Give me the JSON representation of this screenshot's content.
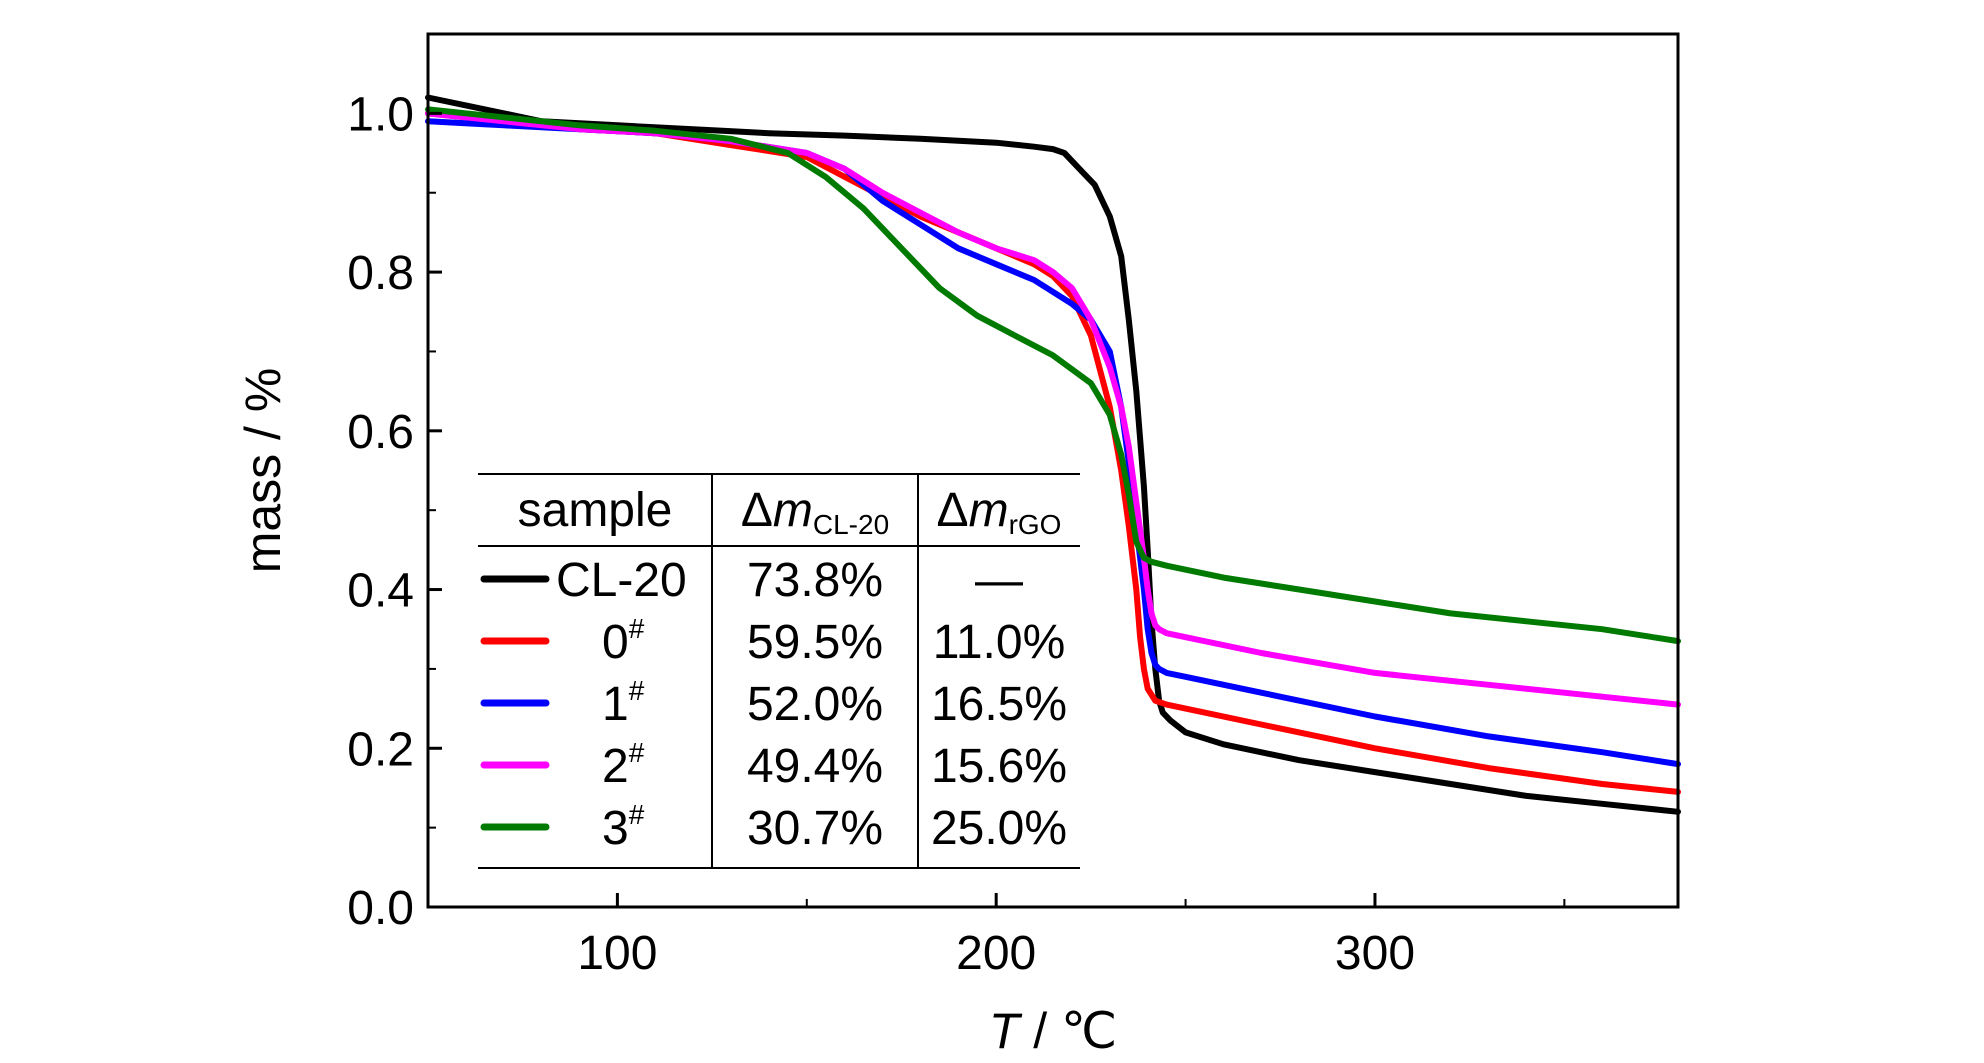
{
  "chart_data": {
    "type": "line",
    "xlabel": {
      "var": "T",
      "unit": " / ℃"
    },
    "ylabel": "mass / %",
    "xlim": [
      50,
      380
    ],
    "ylim": [
      0,
      1.1
    ],
    "xticks": [
      100,
      200,
      300
    ],
    "xticks_labels": [
      "100",
      "200",
      "300"
    ],
    "yticks": [
      0.0,
      0.2,
      0.4,
      0.6,
      0.8,
      1.0
    ],
    "yticks_labels": [
      "0.0",
      "0.2",
      "0.4",
      "0.6",
      "0.8",
      "1.0"
    ],
    "series": [
      {
        "name": "CL-20",
        "color": "#000000",
        "x": [
          50,
          60,
          80,
          100,
          120,
          140,
          160,
          180,
          200,
          210,
          215,
          218,
          222,
          226,
          230,
          233,
          235,
          237,
          239,
          240,
          241,
          242,
          243,
          244,
          246,
          250,
          260,
          280,
          300,
          320,
          340,
          360,
          380
        ],
        "y": [
          1.02,
          1.01,
          0.99,
          0.985,
          0.98,
          0.975,
          0.972,
          0.968,
          0.963,
          0.958,
          0.955,
          0.95,
          0.93,
          0.91,
          0.87,
          0.82,
          0.74,
          0.65,
          0.53,
          0.45,
          0.36,
          0.3,
          0.26,
          0.245,
          0.235,
          0.22,
          0.205,
          0.185,
          0.17,
          0.155,
          0.14,
          0.13,
          0.12
        ]
      },
      {
        "name": "0#",
        "color": "#ff0000",
        "x": [
          50,
          70,
          90,
          110,
          130,
          150,
          160,
          170,
          180,
          190,
          200,
          210,
          215,
          220,
          225,
          230,
          233,
          235,
          237,
          238,
          239,
          240,
          242,
          245,
          250,
          270,
          300,
          330,
          360,
          380
        ],
        "y": [
          1.0,
          0.99,
          0.98,
          0.975,
          0.96,
          0.945,
          0.92,
          0.895,
          0.87,
          0.85,
          0.83,
          0.81,
          0.795,
          0.77,
          0.72,
          0.63,
          0.55,
          0.48,
          0.4,
          0.34,
          0.3,
          0.275,
          0.26,
          0.255,
          0.25,
          0.23,
          0.2,
          0.175,
          0.155,
          0.145
        ]
      },
      {
        "name": "1#",
        "color": "#0000ff",
        "x": [
          50,
          70,
          90,
          110,
          130,
          150,
          160,
          170,
          180,
          190,
          200,
          210,
          220,
          225,
          230,
          233,
          235,
          237,
          239,
          240,
          241,
          242,
          243,
          245,
          250,
          270,
          300,
          330,
          360,
          380
        ],
        "y": [
          0.99,
          0.985,
          0.98,
          0.975,
          0.965,
          0.95,
          0.93,
          0.89,
          0.86,
          0.83,
          0.81,
          0.79,
          0.76,
          0.74,
          0.7,
          0.63,
          0.56,
          0.48,
          0.4,
          0.35,
          0.32,
          0.305,
          0.3,
          0.295,
          0.29,
          0.27,
          0.24,
          0.215,
          0.195,
          0.18
        ]
      },
      {
        "name": "2#",
        "color": "#ff00ff",
        "x": [
          50,
          70,
          90,
          110,
          130,
          150,
          160,
          170,
          180,
          190,
          200,
          210,
          215,
          220,
          225,
          230,
          233,
          235,
          237,
          239,
          240,
          241,
          242,
          243,
          245,
          250,
          270,
          300,
          330,
          360,
          380
        ],
        "y": [
          1.0,
          0.99,
          0.98,
          0.975,
          0.965,
          0.95,
          0.93,
          0.9,
          0.875,
          0.85,
          0.83,
          0.815,
          0.8,
          0.78,
          0.74,
          0.68,
          0.63,
          0.58,
          0.51,
          0.44,
          0.4,
          0.37,
          0.355,
          0.35,
          0.345,
          0.34,
          0.32,
          0.295,
          0.28,
          0.265,
          0.255
        ]
      },
      {
        "name": "3#",
        "color": "#007a00",
        "x": [
          50,
          70,
          90,
          110,
          130,
          145,
          155,
          165,
          175,
          185,
          195,
          205,
          215,
          225,
          230,
          233,
          235,
          237,
          239,
          241,
          245,
          260,
          280,
          300,
          320,
          340,
          360,
          380
        ],
        "y": [
          1.005,
          0.995,
          0.985,
          0.978,
          0.968,
          0.95,
          0.92,
          0.88,
          0.83,
          0.78,
          0.745,
          0.72,
          0.695,
          0.66,
          0.62,
          0.57,
          0.52,
          0.46,
          0.44,
          0.435,
          0.43,
          0.415,
          0.4,
          0.385,
          0.37,
          0.36,
          0.35,
          0.335
        ]
      }
    ],
    "legend": {
      "placement": "lower-left",
      "header": {
        "sample": "sample",
        "delta_sym": "Δ",
        "m_sym": "m",
        "col2_sub": "CL-20",
        "col3_sub": "rGO"
      },
      "rows": [
        {
          "label": "CL-20",
          "sup": "",
          "dm_cl20": "73.8%",
          "dm_rgo": "—"
        },
        {
          "label": "0",
          "sup": "#",
          "dm_cl20": "59.5%",
          "dm_rgo": "11.0%"
        },
        {
          "label": "1",
          "sup": "#",
          "dm_cl20": "52.0%",
          "dm_rgo": "16.5%"
        },
        {
          "label": "2",
          "sup": "#",
          "dm_cl20": "49.4%",
          "dm_rgo": "15.6%"
        },
        {
          "label": "3",
          "sup": "#",
          "dm_cl20": "30.7%",
          "dm_rgo": "25.0%"
        }
      ]
    }
  }
}
